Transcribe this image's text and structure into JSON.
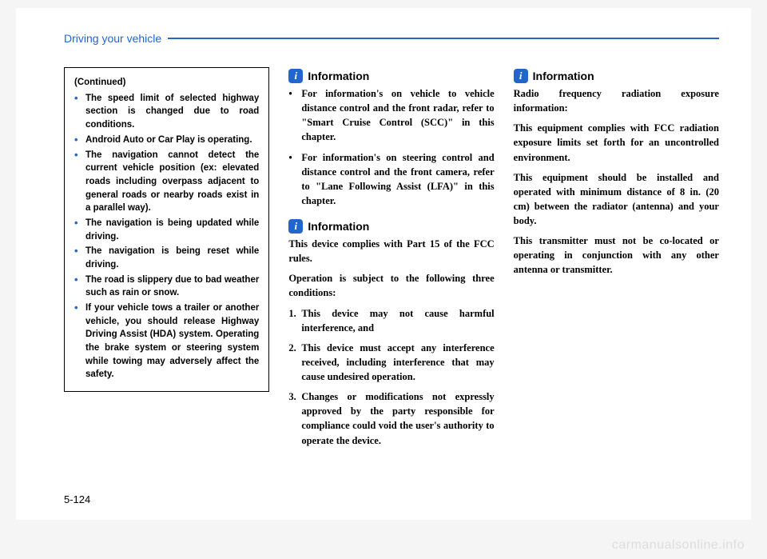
{
  "header": {
    "section_title": "Driving your vehicle"
  },
  "page_number": "5-124",
  "watermark": "carmanualsonline.info",
  "col1": {
    "continued": "(Continued)",
    "items": [
      "The speed limit of selected highway section is changed due to road conditions.",
      "Android Auto or Car Play is operating.",
      "The navigation cannot detect the current vehicle position (ex: elevated roads including overpass adjacent to general roads or nearby roads exist in a parallel way).",
      "The navigation is being updated while driving.",
      "The navigation is being reset while driving.",
      "The road is slippery due to bad weather such as rain or snow.",
      "If your vehicle tows a trailer or another vehicle, you should release Highway Driving Assist (HDA) system. Operating the brake system or steering system while towing may adversely affect the safety."
    ]
  },
  "col2": {
    "info1": {
      "heading": "Information",
      "bullets": [
        "For information's on vehicle to vehicle distance control and the front radar, refer to \"Smart Cruise Control (SCC)\" in this chapter.",
        "For information's on steering control and distance control and the front camera, refer to \"Lane Following Assist (LFA)\" in this chapter."
      ]
    },
    "info2": {
      "heading": "Information",
      "p1": "This device complies with Part 15 of the FCC rules.",
      "p2": "Operation is subject to the following three conditions:",
      "numbered": [
        "This device may not cause harmful interference, and",
        "This device must accept any interference received, including interference that may cause undesired operation.",
        "Changes or modifications not expressly approved by the party responsible for compliance could void the user's authority to operate the device."
      ]
    }
  },
  "col3": {
    "info3": {
      "heading": "Information",
      "paras": [
        "Radio frequency radiation exposure information:",
        "This equipment complies with FCC radiation exposure limits set forth for an uncontrolled environment.",
        "This equipment should be installed and operated with minimum distance of 8 in. (20 cm) between the radiator (antenna) and your body.",
        "This transmitter must not be co-located or operating in conjunction with any other antenna or transmitter."
      ]
    }
  }
}
